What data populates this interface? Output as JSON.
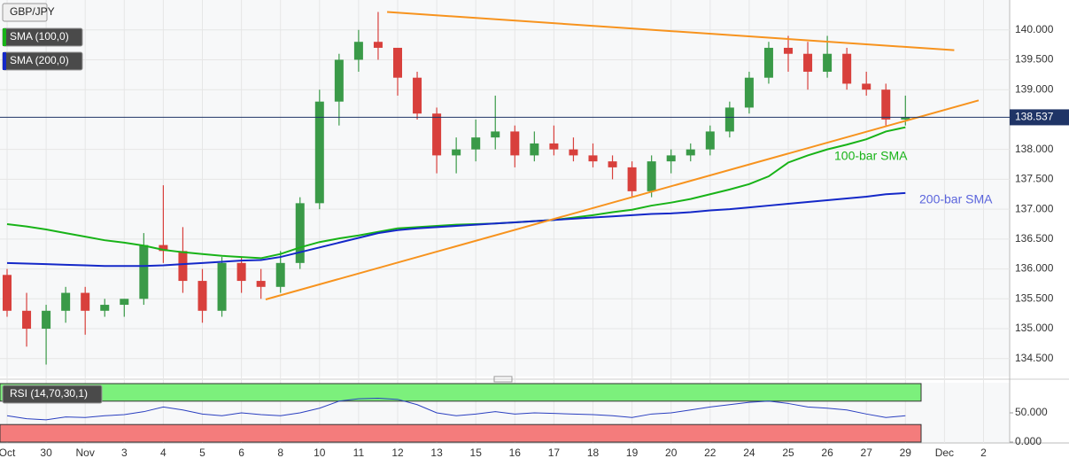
{
  "chart_data": [
    {
      "type": "candlestick",
      "title": "GBP/JPY",
      "categories": [
        "Oct",
        null,
        "30",
        null,
        "Nov",
        null,
        "3",
        null,
        "4",
        null,
        "5",
        null,
        "6",
        null,
        "8",
        null,
        "10",
        null,
        "11",
        null,
        "12",
        null,
        "13",
        null,
        "15",
        null,
        "16",
        null,
        "17",
        null,
        "18",
        null,
        "19",
        null,
        "20",
        null,
        "22",
        null,
        "24",
        null,
        "25",
        null,
        "26",
        null,
        "27",
        null,
        "29",
        null,
        "Dec",
        null,
        "2",
        null
      ],
      "open": [
        135.9,
        135.3,
        135.0,
        135.3,
        135.6,
        135.3,
        135.4,
        135.5,
        136.4,
        136.3,
        135.8,
        135.3,
        136.1,
        135.8,
        135.7,
        136.1,
        137.1,
        138.8,
        139.5,
        139.8,
        139.7,
        139.2,
        138.6,
        137.9,
        138.0,
        138.2,
        138.3,
        137.9,
        138.1,
        138.0,
        137.9,
        137.8,
        137.7,
        137.3,
        137.8,
        137.9,
        138.0,
        138.3,
        138.7,
        139.2,
        139.7,
        139.6,
        139.3,
        139.6,
        139.1,
        139.0,
        138.5,
        null,
        null,
        null,
        null,
        null
      ],
      "high": [
        136.0,
        135.6,
        135.4,
        135.7,
        135.7,
        135.5,
        135.5,
        136.6,
        137.4,
        136.7,
        136.0,
        136.2,
        136.2,
        136.0,
        136.3,
        137.2,
        139.0,
        139.6,
        140.0,
        140.3,
        139.7,
        139.3,
        138.7,
        138.2,
        138.5,
        138.9,
        138.4,
        138.3,
        138.4,
        138.2,
        138.1,
        137.9,
        137.8,
        137.9,
        138.0,
        138.1,
        138.4,
        138.8,
        139.3,
        139.8,
        139.9,
        139.8,
        139.9,
        139.7,
        139.3,
        139.1,
        138.9,
        null,
        null,
        null,
        null,
        null
      ],
      "low": [
        135.2,
        134.7,
        134.4,
        135.1,
        134.9,
        135.2,
        135.2,
        135.4,
        136.1,
        135.6,
        135.1,
        135.2,
        135.6,
        135.5,
        135.6,
        136.0,
        137.0,
        138.4,
        139.3,
        139.5,
        138.9,
        138.5,
        137.6,
        137.6,
        137.8,
        138.0,
        137.7,
        137.8,
        137.9,
        137.8,
        137.7,
        137.5,
        137.2,
        137.2,
        137.6,
        137.8,
        137.9,
        138.2,
        138.6,
        139.1,
        139.3,
        139.0,
        139.2,
        139.0,
        138.9,
        138.4,
        138.4,
        null,
        null,
        null,
        null,
        null
      ],
      "close": [
        135.3,
        135.0,
        135.3,
        135.6,
        135.3,
        135.4,
        135.5,
        136.4,
        136.3,
        135.8,
        135.3,
        136.1,
        135.8,
        135.7,
        136.1,
        137.1,
        138.8,
        139.5,
        139.8,
        139.7,
        139.2,
        138.6,
        137.9,
        138.0,
        138.2,
        138.3,
        137.9,
        138.1,
        138.0,
        137.9,
        137.8,
        137.7,
        137.3,
        137.8,
        137.9,
        138.0,
        138.3,
        138.7,
        139.2,
        139.7,
        139.6,
        139.3,
        139.6,
        139.1,
        139.0,
        138.5,
        138.54,
        null,
        null,
        null,
        null,
        null
      ],
      "up_color": "#3a9a48",
      "down_color": "#d8403c",
      "series": [
        {
          "name": "SMA (100,0)",
          "color": "#18b318",
          "values": [
            136.75,
            136.71,
            136.66,
            136.6,
            136.54,
            136.48,
            136.44,
            136.39,
            136.32,
            136.28,
            136.25,
            136.22,
            136.2,
            136.18,
            136.25,
            136.36,
            136.45,
            136.51,
            136.56,
            136.62,
            136.68,
            136.7,
            136.72,
            136.74,
            136.75,
            136.76,
            136.78,
            136.8,
            136.82,
            136.86,
            136.9,
            136.95,
            136.99,
            137.06,
            137.11,
            137.17,
            137.25,
            137.33,
            137.42,
            137.55,
            137.78,
            137.9,
            138.0,
            138.08,
            138.17,
            138.3,
            138.37,
            null,
            null,
            null,
            null,
            null
          ]
        },
        {
          "name": "SMA (200,0)",
          "color": "#1428c8",
          "values": [
            136.1,
            136.09,
            136.08,
            136.07,
            136.06,
            136.05,
            136.05,
            136.05,
            136.06,
            136.08,
            136.1,
            136.12,
            136.14,
            136.15,
            136.2,
            136.28,
            136.36,
            136.44,
            136.52,
            136.6,
            136.65,
            136.68,
            136.7,
            136.72,
            136.74,
            136.76,
            136.78,
            136.8,
            136.82,
            136.84,
            136.86,
            136.88,
            136.9,
            136.92,
            136.93,
            136.95,
            136.98,
            137.0,
            137.03,
            137.06,
            137.09,
            137.12,
            137.15,
            137.18,
            137.21,
            137.25,
            137.27,
            null,
            null,
            null,
            null,
            null
          ]
        }
      ],
      "trendlines": [
        {
          "color": "#f7931e",
          "x": [
            19.46,
            48.5
          ],
          "y": [
            140.3,
            139.66
          ]
        },
        {
          "color": "#f7931e",
          "x": [
            13.24,
            49.75
          ],
          "y": [
            135.49,
            138.82
          ]
        }
      ],
      "annotations": [
        {
          "text": "100-bar SMA",
          "color": "#18b318"
        },
        {
          "text": "200-bar SMA",
          "color": "#5a64dc"
        }
      ],
      "last_price": {
        "value": 138.537,
        "label": "138.537"
      },
      "ylim": [
        134.2,
        140.5
      ],
      "yticks": [
        {
          "value": 140,
          "label": "140.000"
        },
        {
          "value": 139.5,
          "label": "139.500"
        },
        {
          "value": 139,
          "label": "139.000"
        },
        {
          "value": 138,
          "label": "138.000"
        },
        {
          "value": 137.5,
          "label": "137.500"
        },
        {
          "value": 137,
          "label": "137.000"
        },
        {
          "value": 136.5,
          "label": "136.500"
        },
        {
          "value": 136,
          "label": "136.000"
        },
        {
          "value": 135.5,
          "label": "135.500"
        },
        {
          "value": 135,
          "label": "135.000"
        },
        {
          "value": 134.5,
          "label": "134.500"
        }
      ],
      "grid": true
    },
    {
      "type": "line",
      "title": "RSI (14,70,30,1)",
      "series": [
        {
          "name": "RSI",
          "color": "#2a3fc0",
          "values": [
            45,
            40,
            38,
            43,
            42,
            45,
            47,
            52,
            60,
            55,
            48,
            45,
            50,
            47,
            45,
            50,
            58,
            70,
            74,
            75,
            73,
            64,
            50,
            45,
            48,
            52,
            48,
            50,
            49,
            48,
            47,
            45,
            42,
            48,
            50,
            55,
            60,
            64,
            68,
            70,
            66,
            60,
            58,
            55,
            48,
            42,
            45,
            null,
            null,
            null,
            null,
            null
          ]
        }
      ],
      "levels": [
        70,
        30
      ],
      "level_colors": [
        "#7cf07c",
        "#f47c7c"
      ],
      "ylim": [
        0,
        100
      ],
      "yticks": [
        {
          "value": 50,
          "label": "50.000"
        },
        {
          "value": 0,
          "label": "0.000"
        }
      ]
    }
  ]
}
